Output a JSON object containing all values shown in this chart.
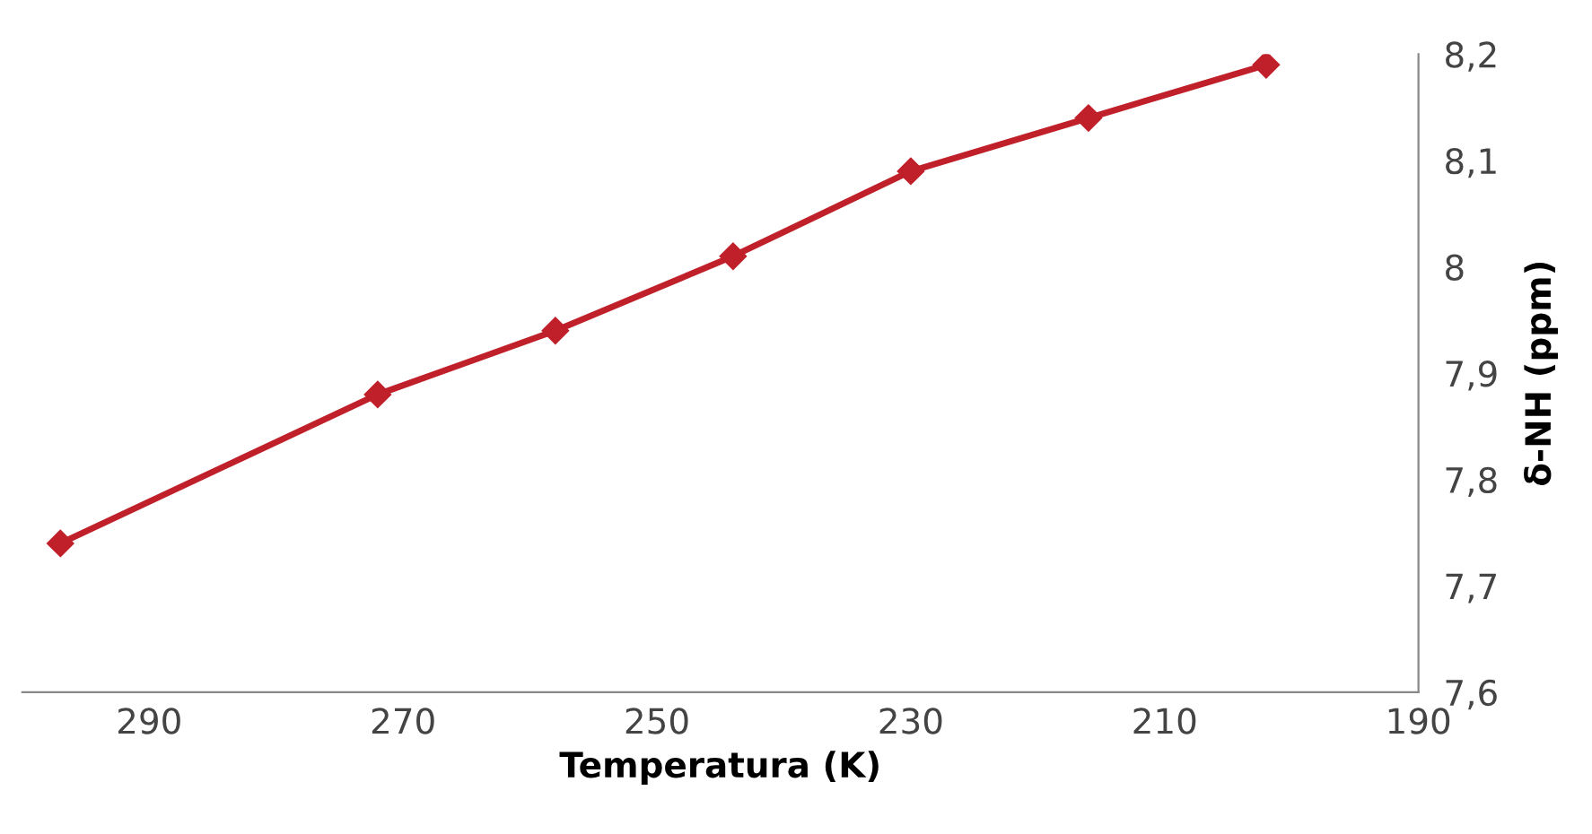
{
  "chart_data": {
    "type": "line",
    "xlabel": "Temperatura (K)",
    "ylabel": "δ-NH (ppm)",
    "x": [
      297,
      272,
      258,
      244,
      230,
      216,
      202
    ],
    "series": [
      {
        "color": "#c0202a",
        "values": [
          7.74,
          7.88,
          7.94,
          8.01,
          8.09,
          8.14,
          8.19
        ]
      }
    ],
    "xlim": [
      300,
      190
    ],
    "xticks": [
      290,
      270,
      250,
      230,
      210,
      190
    ],
    "ylim": [
      7.6,
      8.2
    ],
    "yticks": [
      {
        "value": 7.6,
        "label": "7,6"
      },
      {
        "value": 7.7,
        "label": "7,7"
      },
      {
        "value": 7.8,
        "label": "7,8"
      },
      {
        "value": 7.9,
        "label": "7,9"
      },
      {
        "value": 8.0,
        "label": "8"
      },
      {
        "value": 8.1,
        "label": "8,1"
      },
      {
        "value": 8.2,
        "label": "8,2"
      }
    ],
    "marker": "diamond",
    "line_style": "solid",
    "grid": false,
    "legend": false
  }
}
